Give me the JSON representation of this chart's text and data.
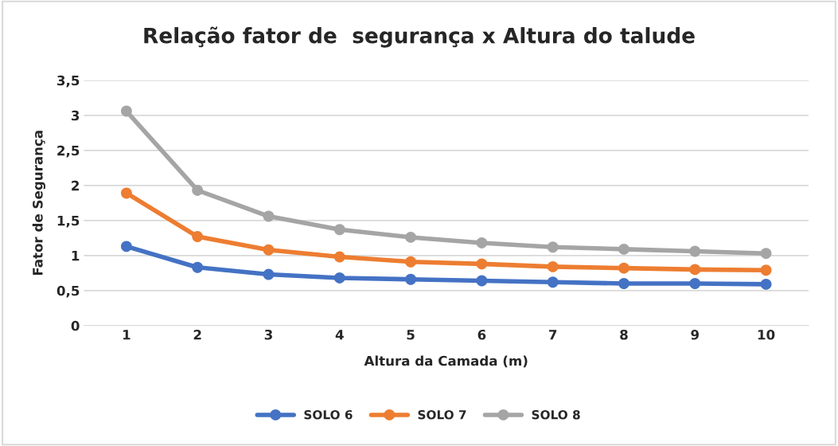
{
  "chart_data": {
    "type": "line",
    "title": "Relação fator de  segurança x Altura do talude",
    "xlabel": "Altura da Camada (m)",
    "ylabel": "Fator de Segurança",
    "categories": [
      "1",
      "2",
      "3",
      "4",
      "5",
      "6",
      "7",
      "8",
      "9",
      "10"
    ],
    "series": [
      {
        "name": "SOLO 6",
        "color": "#4472c4",
        "values": [
          1.13,
          0.83,
          0.73,
          0.68,
          0.66,
          0.64,
          0.62,
          0.6,
          0.6,
          0.59
        ]
      },
      {
        "name": "SOLO 7",
        "color": "#ed7d31",
        "values": [
          1.89,
          1.27,
          1.08,
          0.98,
          0.91,
          0.88,
          0.84,
          0.82,
          0.8,
          0.79
        ]
      },
      {
        "name": "SOLO 8",
        "color": "#a5a5a5",
        "values": [
          3.06,
          1.93,
          1.56,
          1.37,
          1.26,
          1.18,
          1.12,
          1.09,
          1.06,
          1.03
        ]
      }
    ],
    "ylim": [
      0,
      3.5
    ],
    "yticks": [
      {
        "value": 0,
        "label": "0"
      },
      {
        "value": 0.5,
        "label": "0,5"
      },
      {
        "value": 1,
        "label": "1"
      },
      {
        "value": 1.5,
        "label": "1,5"
      },
      {
        "value": 2,
        "label": "2"
      },
      {
        "value": 2.5,
        "label": "2,5"
      },
      {
        "value": 3,
        "label": "3"
      },
      {
        "value": 3.5,
        "label": "3,5"
      }
    ],
    "grid": "y",
    "legend": "bottom",
    "marker": "circle",
    "line_style": "solid"
  }
}
